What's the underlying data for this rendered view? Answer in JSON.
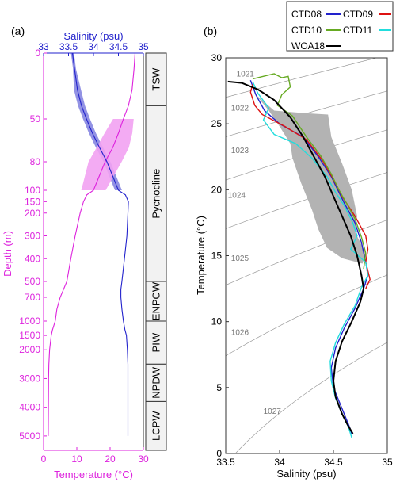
{
  "colors": {
    "salinity": "#2222cc",
    "temperature": "#dd22dd",
    "salinity_band": "#7777dd",
    "temperature_band": "#f2a2f2",
    "envelope": "#b3b3b3",
    "isopycnal": "#9a9a9a",
    "label_box": "#f2f2f2"
  },
  "chart_data": [
    {
      "type": "line",
      "panel_label": "(a)",
      "top_axis": {
        "label": "Salinity (psu)",
        "range": [
          33,
          35
        ],
        "ticks": [
          "33",
          "33.5",
          "34",
          "34.5",
          "35"
        ]
      },
      "bottom_axis": {
        "label": "Temperature (°C)",
        "range": [
          0,
          30
        ],
        "ticks": [
          "0",
          "10",
          "20",
          "30"
        ]
      },
      "y_axis": {
        "label": "Depth (m)",
        "reversed": true,
        "ticks": [
          "0",
          "50",
          "80",
          "100",
          "150",
          "200",
          "300",
          "400",
          "500",
          "700",
          "1000",
          "1500",
          "2000",
          "3000",
          "4000",
          "5000"
        ]
      },
      "series": [
        {
          "quantity": "salinity",
          "axis": "top",
          "points": [
            [
              33.58,
              0
            ],
            [
              33.62,
              12
            ],
            [
              33.68,
              28
            ],
            [
              33.76,
              40
            ],
            [
              33.86,
              50
            ],
            [
              33.98,
              60
            ],
            [
              34.12,
              70
            ],
            [
              34.27,
              80
            ],
            [
              34.5,
              100
            ],
            [
              34.64,
              120
            ],
            [
              34.7,
              150
            ],
            [
              34.69,
              200
            ],
            [
              34.67,
              300
            ],
            [
              34.62,
              400
            ],
            [
              34.57,
              500
            ],
            [
              34.55,
              600
            ],
            [
              34.55,
              700
            ],
            [
              34.57,
              850
            ],
            [
              34.6,
              1000
            ],
            [
              34.63,
              1300
            ],
            [
              34.66,
              1500
            ],
            [
              34.68,
              2000
            ],
            [
              34.69,
              2500
            ],
            [
              34.69,
              3000
            ],
            [
              34.69,
              4000
            ],
            [
              34.69,
              5000
            ]
          ]
        },
        {
          "quantity": "temperature",
          "axis": "bottom",
          "points": [
            [
              27.5,
              0
            ],
            [
              27.2,
              12
            ],
            [
              26.6,
              28
            ],
            [
              25.5,
              40
            ],
            [
              24,
              50
            ],
            [
              22.5,
              60
            ],
            [
              20.8,
              70
            ],
            [
              18.5,
              80
            ],
            [
              15,
              100
            ],
            [
              13,
              120
            ],
            [
              12,
              150
            ],
            [
              11,
              200
            ],
            [
              9.5,
              300
            ],
            [
              8.2,
              400
            ],
            [
              7,
              500
            ],
            [
              6,
              600
            ],
            [
              5,
              700
            ],
            [
              4,
              850
            ],
            [
              3.5,
              1000
            ],
            [
              2.7,
              1300
            ],
            [
              2.3,
              1500
            ],
            [
              1.8,
              2000
            ],
            [
              1.6,
              2500
            ],
            [
              1.5,
              3000
            ],
            [
              1.45,
              4000
            ],
            [
              1.4,
              5000
            ]
          ]
        }
      ],
      "water_masses": [
        {
          "name": "TSW",
          "depth_range": [
            0,
            40
          ]
        },
        {
          "name": "Pycnocline",
          "depth_range": [
            40,
            500
          ]
        },
        {
          "name": "ENPCW",
          "depth_range": [
            500,
            1000
          ]
        },
        {
          "name": "PIW",
          "depth_range": [
            1000,
            2500
          ]
        },
        {
          "name": "NPDW",
          "depth_range": [
            2500,
            3800
          ]
        },
        {
          "name": "LCPW",
          "depth_range": [
            3800,
            5500
          ]
        }
      ]
    },
    {
      "type": "line",
      "panel_label": "(b)",
      "xlabel": "Salinity (psu)",
      "ylabel": "Temperature (°C)",
      "xlim": [
        33.5,
        35
      ],
      "ylim": [
        0,
        30
      ],
      "xticks": [
        "33.5",
        "34",
        "34.5",
        "35"
      ],
      "yticks": [
        "0",
        "5",
        "10",
        "15",
        "20",
        "25",
        "30"
      ],
      "legend_position": "top-right",
      "isopycnal_labels": [
        "1021",
        "1022",
        "1023",
        "1024",
        "1025",
        "1026",
        "1027"
      ],
      "series": [
        {
          "name": "CTD08",
          "color": "#2222cc",
          "points": [
            [
              33.73,
              28.3
            ],
            [
              33.78,
              27.2
            ],
            [
              33.86,
              26
            ],
            [
              34,
              25
            ],
            [
              34.22,
              24
            ],
            [
              34.36,
              22.5
            ],
            [
              34.48,
              21
            ],
            [
              34.54,
              20
            ],
            [
              34.6,
              19
            ],
            [
              34.7,
              17.5
            ],
            [
              34.76,
              16
            ],
            [
              34.8,
              14.5
            ],
            [
              34.82,
              13.5
            ],
            [
              34.78,
              12.5
            ],
            [
              34.7,
              11
            ],
            [
              34.6,
              9.5
            ],
            [
              34.52,
              8
            ],
            [
              34.48,
              6.5
            ],
            [
              34.5,
              5
            ],
            [
              34.55,
              4
            ],
            [
              34.6,
              3
            ],
            [
              34.65,
              2
            ],
            [
              34.67,
              1.5
            ]
          ]
        },
        {
          "name": "CTD09",
          "color": "#dd1111",
          "points": [
            [
              33.75,
              28
            ],
            [
              33.73,
              27.4
            ],
            [
              33.77,
              26.4
            ],
            [
              33.84,
              25.7
            ],
            [
              34.05,
              24.8
            ],
            [
              34.25,
              23.8
            ],
            [
              34.4,
              22.2
            ],
            [
              34.5,
              20.8
            ],
            [
              34.58,
              19.5
            ],
            [
              34.7,
              18
            ],
            [
              34.8,
              16.5
            ],
            [
              34.82,
              15.5
            ],
            [
              34.8,
              14.5
            ],
            [
              34.84,
              13.2
            ],
            [
              34.8,
              12.5
            ]
          ]
        },
        {
          "name": "CTD10",
          "color": "#66aa22",
          "points": [
            [
              33.75,
              28.4
            ],
            [
              33.95,
              28.8
            ],
            [
              34.02,
              28.5
            ],
            [
              34.08,
              28.6
            ],
            [
              34.1,
              27.8
            ],
            [
              34.02,
              27.2
            ],
            [
              33.98,
              26.4
            ],
            [
              34.12,
              25.6
            ],
            [
              34.25,
              24
            ],
            [
              34.38,
              22.6
            ],
            [
              34.48,
              21.2
            ],
            [
              34.55,
              20
            ],
            [
              34.62,
              19
            ],
            [
              34.7,
              17.8
            ],
            [
              34.76,
              16.4
            ],
            [
              34.8,
              15.2
            ],
            [
              34.78,
              14
            ]
          ]
        },
        {
          "name": "CTD11",
          "color": "#22dddd",
          "points": [
            [
              33.75,
              28.2
            ],
            [
              33.8,
              27.3
            ],
            [
              33.9,
              26.2
            ],
            [
              33.85,
              25.3
            ],
            [
              33.95,
              24.2
            ],
            [
              34.15,
              23.5
            ],
            [
              34.3,
              22.4
            ],
            [
              34.44,
              21
            ],
            [
              34.52,
              19.8
            ],
            [
              34.6,
              18.8
            ],
            [
              34.68,
              17.5
            ],
            [
              34.72,
              16.5
            ],
            [
              34.66,
              15.5
            ],
            [
              34.8,
              14.5
            ],
            [
              34.82,
              13.5
            ],
            [
              34.76,
              12.6
            ],
            [
              34.7,
              11.2
            ],
            [
              34.6,
              9.8
            ],
            [
              34.52,
              8.4
            ],
            [
              34.47,
              7
            ],
            [
              34.48,
              5.5
            ],
            [
              34.52,
              4.2
            ],
            [
              34.58,
              3
            ],
            [
              34.64,
              2
            ],
            [
              34.67,
              1.2
            ]
          ]
        },
        {
          "name": "WOA18",
          "color": "#000000",
          "points": [
            [
              33.52,
              28.2
            ],
            [
              33.65,
              28.1
            ],
            [
              33.8,
              27.6
            ],
            [
              33.95,
              26.8
            ],
            [
              34.1,
              25.5
            ],
            [
              34.22,
              24
            ],
            [
              34.32,
              22.5
            ],
            [
              34.42,
              21
            ],
            [
              34.5,
              19.5
            ],
            [
              34.58,
              18
            ],
            [
              34.66,
              16.5
            ],
            [
              34.72,
              15
            ],
            [
              34.76,
              13.5
            ],
            [
              34.78,
              12.5
            ],
            [
              34.75,
              11.5
            ],
            [
              34.67,
              10
            ],
            [
              34.58,
              8.5
            ],
            [
              34.52,
              7
            ],
            [
              34.5,
              5.5
            ],
            [
              34.52,
              4.3
            ],
            [
              34.58,
              3
            ],
            [
              34.63,
              2.2
            ],
            [
              34.68,
              1.5
            ]
          ]
        }
      ],
      "envelope": [
        [
          33.74,
          28.3
        ],
        [
          33.78,
          27.2
        ],
        [
          33.95,
          26
        ],
        [
          34.25,
          25.8
        ],
        [
          34.45,
          25.7
        ],
        [
          34.48,
          24
        ],
        [
          34.58,
          22
        ],
        [
          34.67,
          20
        ],
        [
          34.72,
          18
        ],
        [
          34.7,
          16.8
        ],
        [
          34.8,
          15.2
        ],
        [
          34.77,
          14.4
        ],
        [
          34.58,
          14.8
        ],
        [
          34.44,
          15.6
        ],
        [
          34.36,
          17
        ],
        [
          34.3,
          18.5
        ],
        [
          34.2,
          20.5
        ],
        [
          34.12,
          22.4
        ],
        [
          34.1,
          23.5
        ],
        [
          34.0,
          24.8
        ],
        [
          33.9,
          26
        ],
        [
          33.78,
          27.2
        ]
      ]
    }
  ]
}
